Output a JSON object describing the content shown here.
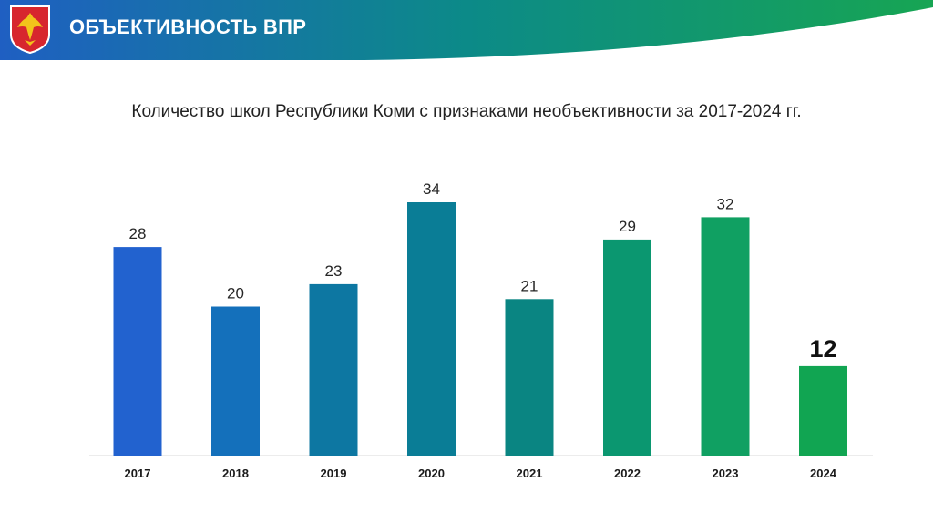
{
  "header": {
    "title": "ОБЪЕКТИВНОСТЬ ВПР",
    "gradient_colors": [
      "#1f5fc2",
      "#0c8a88",
      "#17a553"
    ]
  },
  "emblem": {
    "icon": "coat-of-arms-icon",
    "shield_color": "#d7262e",
    "bird_color": "#f2c31b"
  },
  "chart_data": {
    "type": "bar",
    "title": "Количество школ Республики Коми с признаками необъективности за 2017-2024 гг.",
    "categories": [
      "2017",
      "2018",
      "2019",
      "2020",
      "2021",
      "2022",
      "2023",
      "2024"
    ],
    "values": [
      28,
      20,
      23,
      34,
      21,
      29,
      32,
      12
    ],
    "value_labels": [
      "28",
      "20",
      "23",
      "34",
      "21",
      "29",
      "32",
      "12"
    ],
    "bar_colors": [
      "#2262cf",
      "#1470bb",
      "#0d77a2",
      "#0a7d96",
      "#0a8582",
      "#0b9770",
      "#10a062",
      "#11a552"
    ],
    "highlight_index": 7,
    "xlabel": "",
    "ylabel": "",
    "ylim": [
      0,
      34
    ],
    "grid": false,
    "legend": "none"
  }
}
